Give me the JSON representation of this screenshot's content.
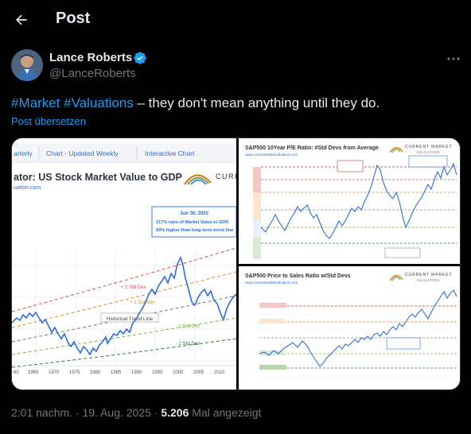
{
  "header": {
    "title": "Post",
    "back_icon": "arrow-left-icon"
  },
  "author": {
    "name": "Lance Roberts",
    "handle": "@LanceRoberts",
    "verified_color": "#1d9bf0"
  },
  "post": {
    "hashtag1": "#Market",
    "hashtag2": "#Valuations",
    "rest": " – they don't mean anything until they do.",
    "translate_label": "Post übersetzen"
  },
  "media": {
    "left": {
      "tab_quarterly": "arterly",
      "tab_chart_weekly": "Chart - Updated Weekly",
      "tab_interactive": "Interactive Chart",
      "title": "ator: US Stock Market Value to GDP",
      "site": "uation.com",
      "logo_text": "CURR",
      "note_line1": "Jun 30, 2025",
      "note_line2": "217% ratio of Market Value to GDP,",
      "note_line3": "69% higher than long-term trend line",
      "label_p2": "+ 2 Std Dev",
      "label_p1": "+ 1 Std Dev",
      "label_trend": "Historical Trend Line",
      "label_m1": "- 1 Std Dev",
      "label_m2": "- 2 Std Dev",
      "x_ticks": [
        "60",
        "1965",
        "1970",
        "1975",
        "1980",
        "1985",
        "1990",
        "1995",
        "2000",
        "2005",
        "2010"
      ]
    },
    "top_right": {
      "title": "S&P500 10Year P/E Ratio: #Std Devs from Average",
      "site": "www.currentmarketvaluation.com",
      "logo_line1": "CURRENT MARKET",
      "logo_line2": "VALUATION"
    },
    "bottom_right": {
      "title": "S&P500 Price to Sales Ratio w/Std Devs",
      "site": "www.currentmarketvaluation.com",
      "logo_line1": "CURRENT MARKET",
      "logo_line2": "VALUATION"
    }
  },
  "footer": {
    "time": "2:01 nachm. · 19. Aug. 2025 · ",
    "views": "5.206",
    "views_label": " Mal angezeigt"
  }
}
